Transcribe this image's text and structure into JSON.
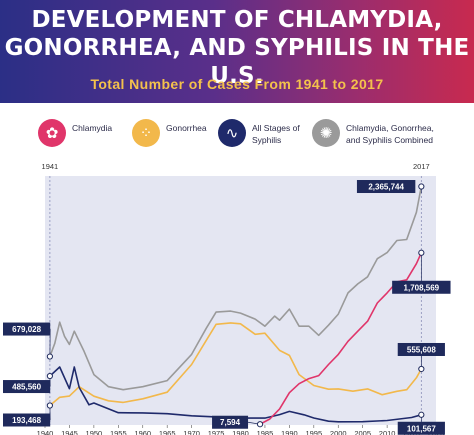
{
  "header": {
    "title": "DEVELOPMENT OF CHLAMYDIA,\nGONORRHEA, AND SYPHILIS IN THE U.S.",
    "subtitle": "Total Number of Cases From 1941 to 2017"
  },
  "legend": [
    {
      "label": "Chlamydia",
      "icon": "chlamydia-icon",
      "color": "#e0356a"
    },
    {
      "label": "Gonorrhea",
      "icon": "gonorrhea-icon",
      "color": "#f2b84b"
    },
    {
      "label": "All Stages of\nSyphilis",
      "icon": "syphilis-icon",
      "color": "#1f2a6b"
    },
    {
      "label": "Chlamydia, Gonorrhea,\nand Syphilis Combined",
      "icon": "combined-icon",
      "color": "#9a9a9a"
    }
  ],
  "colors": {
    "header_start": "#2b2f86",
    "header_end": "#c82a4f",
    "title_accent": "#f4c14c",
    "plot_background": "#e4e6f2",
    "label_box": "#1f2a5c"
  },
  "chart_data": {
    "type": "line",
    "xlim": [
      1940,
      2020
    ],
    "x_ticks": [
      "1940",
      "1945",
      "1950",
      "1955",
      "1960",
      "1965",
      "1970",
      "1975",
      "1980",
      "1985",
      "1990",
      "1995",
      "2000",
      "2005",
      "2010",
      "2015",
      "2020"
    ],
    "markers": [
      "1941",
      "2017"
    ],
    "grid": false,
    "series": [
      {
        "name": "Chlamydia",
        "color": "#e0356a",
        "x": [
          1984,
          1986,
          1988,
          1990,
          1992,
          1994,
          1996,
          1998,
          2000,
          2002,
          2004,
          2006,
          2008,
          2010,
          2012,
          2014,
          2016,
          2017
        ],
        "y": [
          7594,
          60000,
          160000,
          320000,
          410000,
          460000,
          490000,
          600000,
          700000,
          830000,
          930000,
          1030000,
          1210000,
          1310000,
          1420000,
          1440000,
          1600000,
          1708569
        ]
      },
      {
        "name": "Gonorrhea",
        "color": "#f2b84b",
        "x": [
          1941,
          1943,
          1945,
          1947,
          1950,
          1953,
          1956,
          1960,
          1965,
          1970,
          1973,
          1975,
          1978,
          1980,
          1983,
          1985,
          1988,
          1990,
          1992,
          1995,
          1998,
          2000,
          2003,
          2006,
          2009,
          2012,
          2014,
          2016,
          2017
        ],
        "y": [
          193468,
          275000,
          287000,
          380000,
          286000,
          240000,
          224000,
          260000,
          325000,
          600000,
          840000,
          999000,
          1013000,
          1004000,
          900000,
          911000,
          740000,
          690000,
          500000,
          392000,
          355000,
          358000,
          335000,
          358000,
          301000,
          334000,
          350000,
          468000,
          555608
        ]
      },
      {
        "name": "All Stages of Syphilis",
        "color": "#1f2a6b",
        "x": [
          1941,
          1943,
          1945,
          1946,
          1947,
          1949,
          1950,
          1955,
          1960,
          1965,
          1970,
          1975,
          1980,
          1985,
          1988,
          1990,
          1993,
          1995,
          1998,
          2000,
          2005,
          2010,
          2015,
          2017
        ],
        "y": [
          485560,
          575000,
          360000,
          575000,
          372000,
          200000,
          218000,
          122000,
          120000,
          112000,
          91000,
          80000,
          68000,
          68000,
          103000,
          135000,
          101000,
          69000,
          38000,
          32000,
          33000,
          45000,
          74000,
          101567
        ]
      },
      {
        "name": "Chlamydia, Gonorrhea, and Syphilis Combined",
        "color": "#9a9a9a",
        "x": [
          1941,
          1942,
          1943,
          1944,
          1945,
          1946,
          1948,
          1950,
          1953,
          1956,
          1960,
          1965,
          1970,
          1973,
          1975,
          1978,
          1980,
          1983,
          1985,
          1987,
          1988,
          1990,
          1992,
          1994,
          1996,
          1998,
          2000,
          2002,
          2004,
          2006,
          2008,
          2010,
          2012,
          2014,
          2016,
          2017
        ],
        "y": [
          679028,
          810000,
          1020000,
          880000,
          800000,
          930000,
          730000,
          500000,
          380000,
          350000,
          380000,
          440000,
          700000,
          960000,
          1120000,
          1130000,
          1110000,
          1050000,
          980000,
          1080000,
          1040000,
          1150000,
          980000,
          980000,
          890000,
          990000,
          1100000,
          1310000,
          1400000,
          1470000,
          1650000,
          1710000,
          1830000,
          1840000,
          2110000,
          2365744
        ]
      }
    ],
    "annotations": [
      {
        "text": "2,365,744",
        "x": 2017,
        "y": 2365744
      },
      {
        "text": "1,708,569",
        "x": 2017,
        "y": 1708569
      },
      {
        "text": "555,608",
        "x": 2017,
        "y": 555608
      },
      {
        "text": "101,567",
        "x": 2017,
        "y": 101567
      },
      {
        "text": "679,028",
        "x": 1941,
        "y": 679028
      },
      {
        "text": "485,560",
        "x": 1941,
        "y": 485560
      },
      {
        "text": "193,468",
        "x": 1941,
        "y": 193468
      },
      {
        "text": "7,594",
        "x": 1984,
        "y": 7594
      }
    ]
  }
}
